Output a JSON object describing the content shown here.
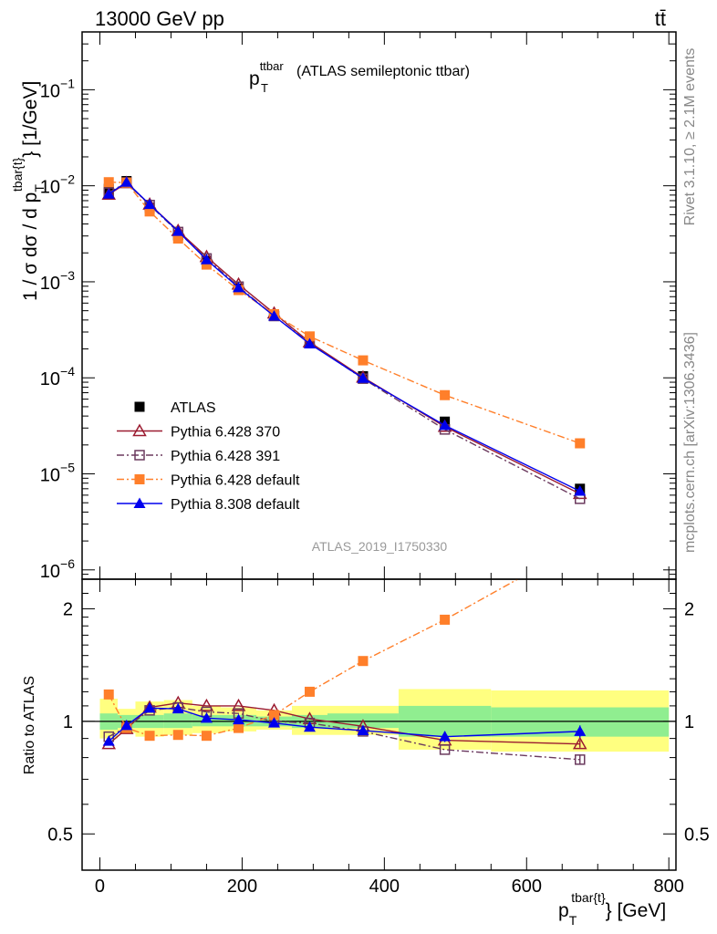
{
  "header": {
    "left": "13000 GeV pp",
    "right": "tt̄"
  },
  "side_labels": {
    "rivet": "Rivet 3.1.10, ≥ 2.1M events",
    "mcplots": "mcplots.cern.ch [arXiv:1306.3436]"
  },
  "analysis_id": "ATLAS_2019_I1750330",
  "chart_data": [
    {
      "type": "line",
      "panel": "main",
      "title": "p_T^ttbar (ATLAS semileptonic ttbar)",
      "title_main": "p",
      "title_sup": "ttbar",
      "title_sub": "T",
      "title_rest": "(ATLAS semileptonic ttbar)",
      "ylabel": "1 / σ dσ / d p_T^tbar{t} [1/GeV]",
      "ylabel_prefix": "1 / σ dσ / d p",
      "ylabel_sub": "T",
      "ylabel_sup": "tbar{t}",
      "ylabel_suffix": "} [1/GeV]",
      "y_scale": "log",
      "ylim": [
        8e-07,
        0.4
      ],
      "xlim": [
        -25,
        810
      ],
      "y_ticks": [
        {
          "value": 1e-06,
          "label_base": "10",
          "label_exp": "−6"
        },
        {
          "value": 1e-05,
          "label_base": "10",
          "label_exp": "−5"
        },
        {
          "value": 0.0001,
          "label_base": "10",
          "label_exp": "−4"
        },
        {
          "value": 0.001,
          "label_base": "10",
          "label_exp": "−3"
        },
        {
          "value": 0.01,
          "label_base": "10",
          "label_exp": "−2"
        },
        {
          "value": 0.1,
          "label_base": "10",
          "label_exp": "−1"
        }
      ],
      "legend_position": "center-left",
      "x": [
        12.5,
        37.5,
        70,
        110,
        150,
        195,
        245,
        295,
        370,
        485,
        675
      ],
      "series": [
        {
          "name": "ATLAS",
          "color": "#000000",
          "marker": "filled-square",
          "line": "none",
          "values": [
            0.0093,
            0.0112,
            0.0059,
            0.00305,
            0.00165,
            0.00085,
            0.00044,
            0.000232,
            0.000104,
            3.5e-05,
            7e-06
          ]
        },
        {
          "name": "Pythia 6.428 370",
          "color": "#9b1b30",
          "marker": "open-triangle",
          "line": "solid",
          "values": [
            0.0081,
            0.0107,
            0.0064,
            0.0034,
            0.00182,
            0.00094,
            0.00047,
            0.000235,
            0.000101,
            3.1e-05,
            6.2e-06
          ]
        },
        {
          "name": "Pythia 6.428 391",
          "color": "#6b3a5e",
          "marker": "open-square",
          "line": "dashdot",
          "values": [
            0.0085,
            0.0108,
            0.0063,
            0.0033,
            0.00175,
            0.00089,
            0.00044,
            0.00023,
            9.8e-05,
            2.9e-05,
            5.5e-06
          ]
        },
        {
          "name": "Pythia 6.428 default",
          "color": "#ff7f2a",
          "marker": "filled-square",
          "line": "dashdot",
          "values": [
            0.0109,
            0.0108,
            0.0054,
            0.00282,
            0.00151,
            0.00082,
            0.00046,
            0.00027,
            0.000152,
            6.6e-05,
            2.08e-05
          ]
        },
        {
          "name": "Pythia 8.308 default",
          "color": "#0000ee",
          "marker": "filled-triangle",
          "line": "solid",
          "values": [
            0.0082,
            0.0109,
            0.0064,
            0.00335,
            0.0017,
            0.00087,
            0.00044,
            0.000226,
            9.9e-05,
            3.2e-05,
            6.6e-06
          ]
        }
      ]
    },
    {
      "type": "line",
      "panel": "ratio",
      "ylabel": "Ratio to ATLAS",
      "xlabel": "p_T^tbar{t} [GeV]",
      "xlabel_prefix": "p",
      "xlabel_sub": "T",
      "xlabel_sup": "tbar{t}",
      "xlabel_suffix": "} [GeV]",
      "y_scale": "log",
      "ylim": [
        0.4,
        2.4
      ],
      "xlim": [
        -25,
        810
      ],
      "y_ticks": [
        {
          "value": 0.5,
          "label": "0.5"
        },
        {
          "value": 1,
          "label": "1"
        },
        {
          "value": 2,
          "label": "2"
        }
      ],
      "x_ticks": [
        {
          "value": 0,
          "label": "0"
        },
        {
          "value": 200,
          "label": "200"
        },
        {
          "value": 400,
          "label": "400"
        },
        {
          "value": 600,
          "label": "600"
        },
        {
          "value": 800,
          "label": "800"
        }
      ],
      "uncertainty_bands": {
        "bin_edges": [
          0,
          25,
          50,
          90,
          130,
          170,
          220,
          270,
          320,
          420,
          550,
          800
        ],
        "inner": [
          [
            0.95,
            1.05
          ],
          [
            0.96,
            1.04
          ],
          [
            0.96,
            1.04
          ],
          [
            0.96,
            1.05
          ],
          [
            0.97,
            1.04
          ],
          [
            0.97,
            1.04
          ],
          [
            0.97,
            1.03
          ],
          [
            0.96,
            1.04
          ],
          [
            0.96,
            1.05
          ],
          [
            0.91,
            1.1
          ],
          [
            0.91,
            1.09
          ]
        ],
        "outer": [
          [
            0.9,
            1.15
          ],
          [
            0.93,
            1.08
          ],
          [
            0.91,
            1.13
          ],
          [
            0.92,
            1.14
          ],
          [
            0.93,
            1.1
          ],
          [
            0.94,
            1.09
          ],
          [
            0.95,
            1.07
          ],
          [
            0.92,
            1.1
          ],
          [
            0.92,
            1.1
          ],
          [
            0.84,
            1.22
          ],
          [
            0.83,
            1.21
          ]
        ],
        "inner_color": "#90ee90",
        "outer_color": "#ffff80"
      },
      "x": [
        12.5,
        37.5,
        70,
        110,
        150,
        195,
        245,
        295,
        370,
        485,
        675
      ],
      "series": [
        {
          "name": "Pythia 6.428 370",
          "color": "#9b1b30",
          "marker": "open-triangle",
          "line": "solid",
          "values": [
            0.87,
            0.955,
            1.09,
            1.12,
            1.1,
            1.1,
            1.07,
            1.015,
            0.97,
            0.89,
            0.87
          ],
          "errors": [
            0,
            0,
            0,
            0,
            0,
            0,
            0,
            0,
            0,
            0,
            0.02
          ]
        },
        {
          "name": "Pythia 6.428 391",
          "color": "#6b3a5e",
          "marker": "open-square",
          "line": "dashdot",
          "values": [
            0.91,
            0.965,
            1.07,
            1.09,
            1.06,
            1.05,
            1.0,
            0.99,
            0.94,
            0.84,
            0.79
          ],
          "errors": [
            0,
            0,
            0,
            0,
            0,
            0,
            0,
            0,
            0,
            0,
            0.025
          ]
        },
        {
          "name": "Pythia 6.428 default",
          "color": "#ff7f2a",
          "marker": "filled-square",
          "line": "dashdot",
          "values": [
            1.18,
            0.96,
            0.915,
            0.92,
            0.915,
            0.96,
            1.04,
            1.2,
            1.45,
            1.87,
            2.97
          ],
          "errors": [
            0,
            0,
            0,
            0,
            0,
            0,
            0,
            0,
            0,
            0,
            0
          ]
        },
        {
          "name": "Pythia 8.308 default",
          "color": "#0000ee",
          "marker": "filled-triangle",
          "line": "solid",
          "values": [
            0.885,
            0.975,
            1.085,
            1.08,
            1.02,
            1.01,
            0.99,
            0.965,
            0.945,
            0.91,
            0.94
          ],
          "errors": [
            0,
            0,
            0,
            0,
            0,
            0,
            0,
            0,
            0,
            0.03,
            0.035
          ]
        }
      ]
    }
  ]
}
